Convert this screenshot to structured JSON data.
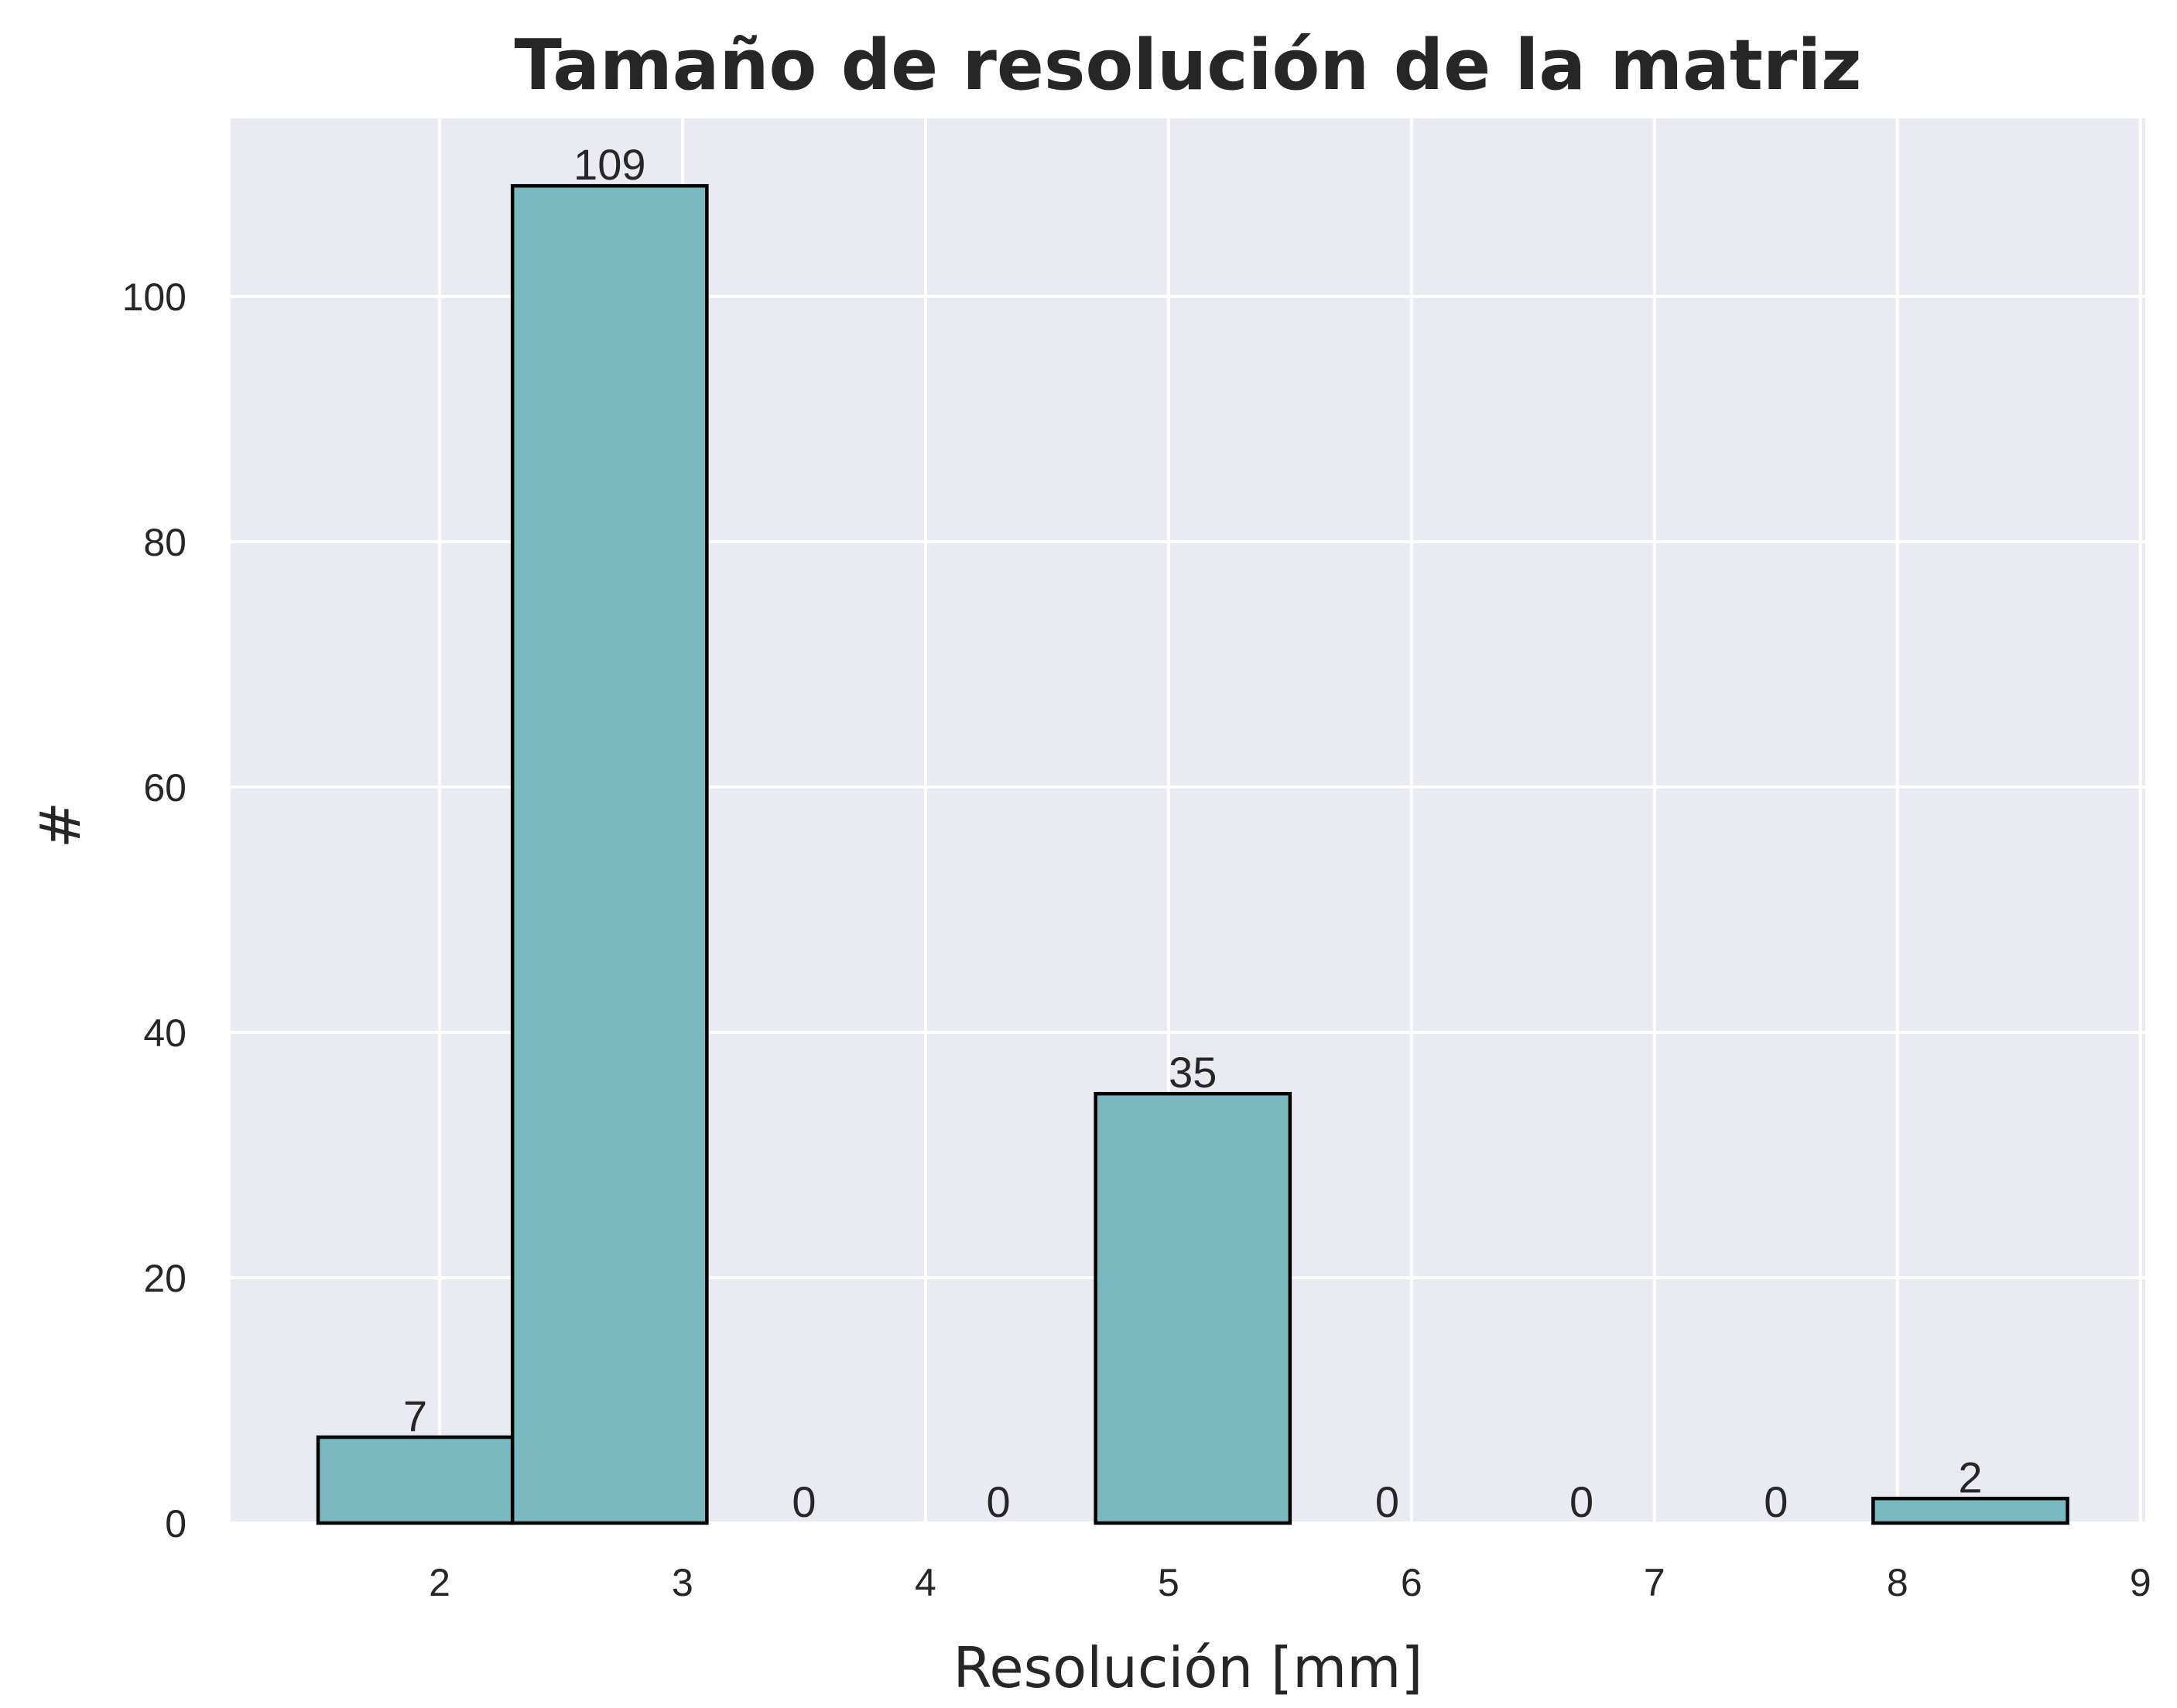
{
  "chart_data": {
    "type": "bar",
    "title": "Tamaño de resolución de la matriz",
    "xlabel": "Resolución [mm]",
    "ylabel": "#",
    "xlim": [
      1.14,
      9.02
    ],
    "ylim": [
      0,
      114.5
    ],
    "xticks": [
      2,
      3,
      4,
      5,
      6,
      7,
      8,
      9
    ],
    "yticks": [
      0,
      20,
      40,
      60,
      80,
      100
    ],
    "bins": [
      {
        "start": 1.5,
        "end": 2.3,
        "value": 7
      },
      {
        "start": 2.3,
        "end": 3.1,
        "value": 109
      },
      {
        "start": 3.1,
        "end": 3.9,
        "value": 0
      },
      {
        "start": 3.9,
        "end": 4.7,
        "value": 0
      },
      {
        "start": 4.7,
        "end": 5.5,
        "value": 35
      },
      {
        "start": 5.5,
        "end": 6.3,
        "value": 0
      },
      {
        "start": 6.3,
        "end": 7.1,
        "value": 0
      },
      {
        "start": 7.1,
        "end": 7.9,
        "value": 0
      },
      {
        "start": 7.9,
        "end": 8.7,
        "value": 2
      }
    ],
    "grid": true,
    "colors": {
      "background": "#eaeaf2",
      "bar_fill": "#7ab9bf",
      "bar_edge": "#000000",
      "grid": "#ffffff",
      "text": "#262626"
    }
  }
}
